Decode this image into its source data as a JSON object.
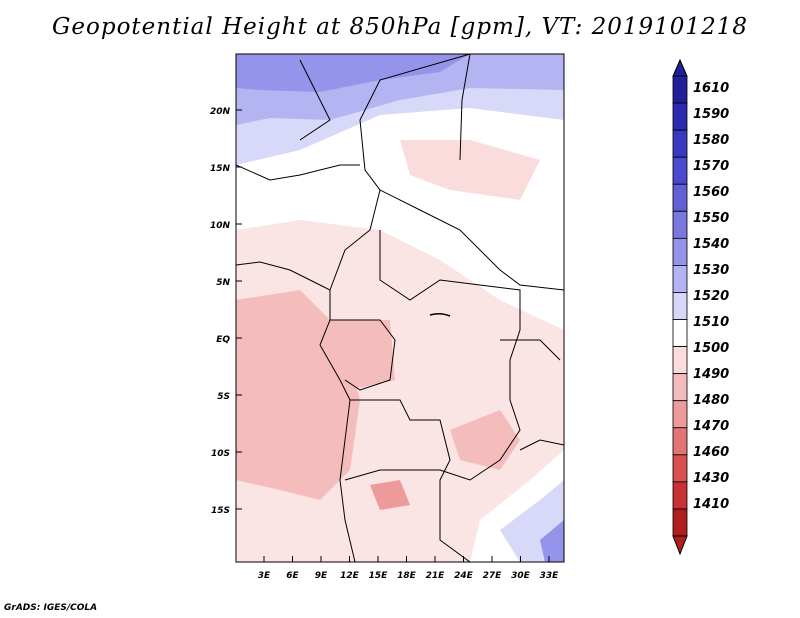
{
  "title": "Geopotential Height at 850hPa [gpm], VT: 2019101218",
  "footer": "GrADS: IGES/COLA",
  "map": {
    "lat_labels": [
      "20N",
      "15N",
      "10N",
      "5N",
      "EQ",
      "5S",
      "10S",
      "15S"
    ],
    "lon_labels": [
      "3E",
      "6E",
      "9E",
      "12E",
      "15E",
      "18E",
      "21E",
      "24E",
      "27E",
      "30E",
      "33E"
    ]
  },
  "colorbar": {
    "levels": [
      "1610",
      "1590",
      "1580",
      "1570",
      "1560",
      "1550",
      "1540",
      "1530",
      "1520",
      "1510",
      "1500",
      "1490",
      "1480",
      "1470",
      "1460",
      "1430",
      "1410"
    ],
    "colors": [
      "#20209a",
      "#2a2ab0",
      "#3838c0",
      "#4a4ad0",
      "#6060d8",
      "#7878e0",
      "#9494ea",
      "#b4b4f2",
      "#d6d6f8",
      "#ffffff",
      "#fbdcdc",
      "#f5bcbc",
      "#ec9a9a",
      "#e27474",
      "#d85050",
      "#c83232",
      "#b01e1e"
    ]
  }
}
